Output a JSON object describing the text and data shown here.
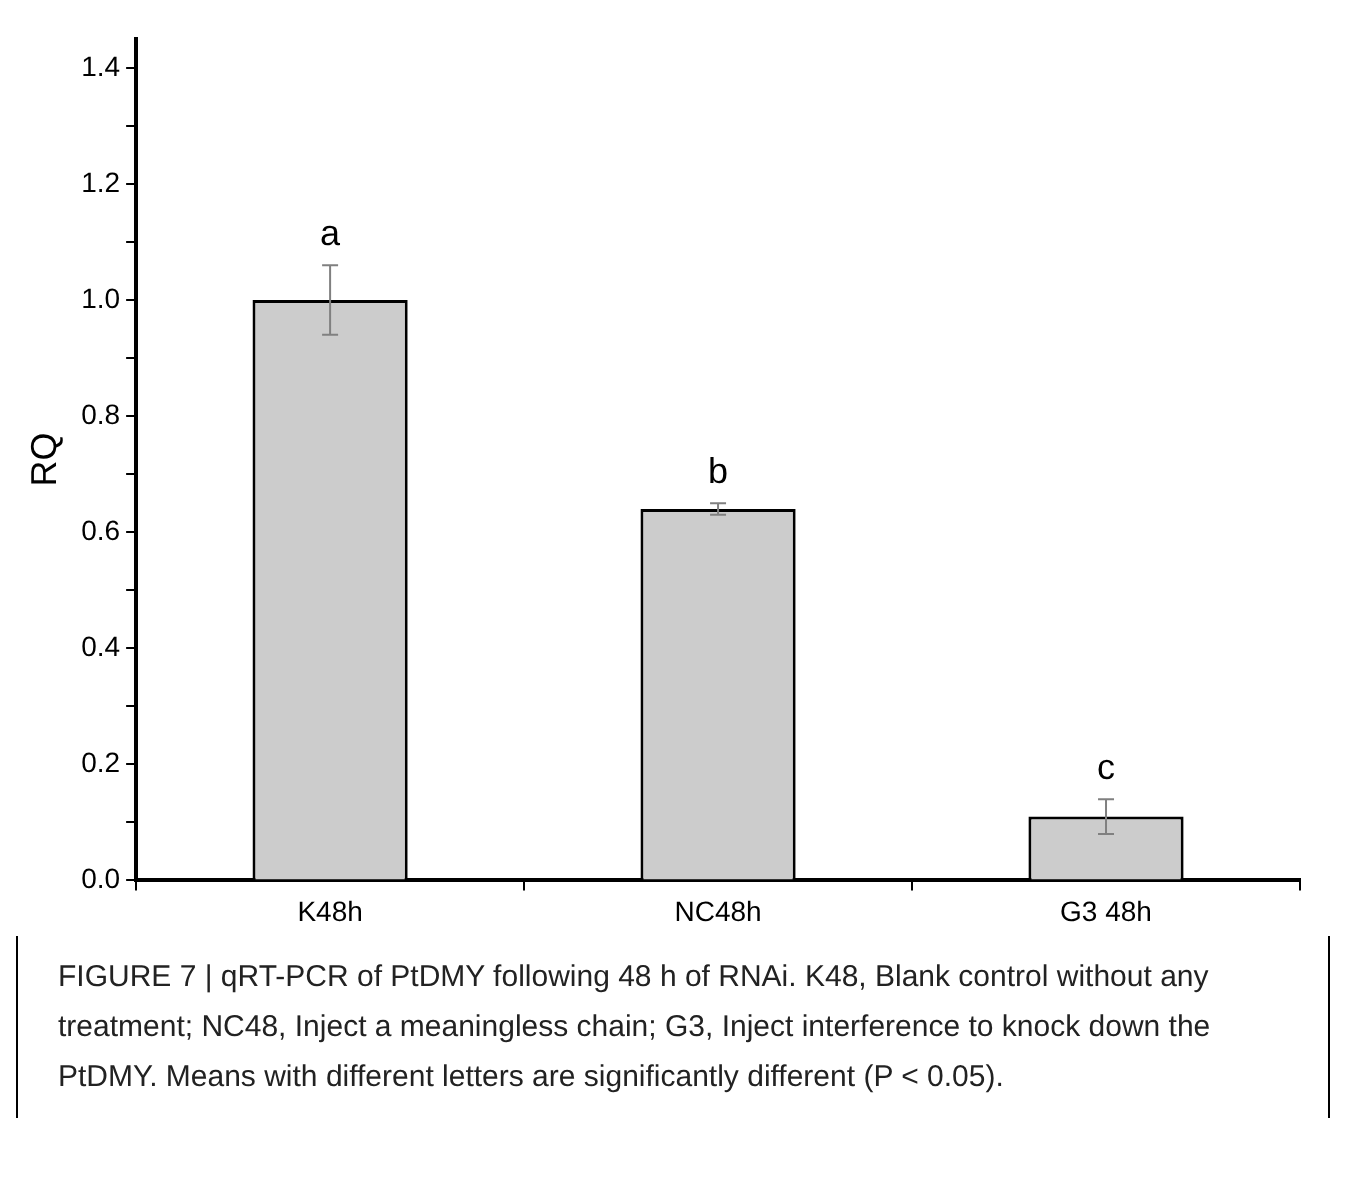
{
  "chart_data": {
    "type": "bar",
    "ylabel": "RQ",
    "categories": [
      "K48h",
      "NC48h",
      "G3 48h"
    ],
    "values": [
      1.0,
      0.64,
      0.11
    ],
    "errors": [
      0.06,
      0.01,
      0.03
    ],
    "color": "#cccccc",
    "ylim": [
      0,
      1.45
    ],
    "yticks": [
      {
        "value": 0,
        "label": "0.0"
      },
      {
        "value": 0.1,
        "label": null
      },
      {
        "value": 0.2,
        "label": "0.2"
      },
      {
        "value": 0.3,
        "label": null
      },
      {
        "value": 0.4,
        "label": "0.4"
      },
      {
        "value": 0.5,
        "label": null
      },
      {
        "value": 0.6,
        "label": "0.6"
      },
      {
        "value": 0.7,
        "label": null
      },
      {
        "value": 0.8,
        "label": "0.8"
      },
      {
        "value": 0.9,
        "label": null
      },
      {
        "value": 1.0,
        "label": "1.0"
      },
      {
        "value": 1.1,
        "label": null
      },
      {
        "value": 1.2,
        "label": "1.2"
      },
      {
        "value": 1.3,
        "label": null
      },
      {
        "value": 1.4,
        "label": "1.4"
      }
    ],
    "grid": false,
    "legend": false,
    "annotations": [
      {
        "text": "a",
        "x": "K48h",
        "y": 1.06
      },
      {
        "text": "b",
        "x": "NC48h",
        "y": 0.65
      },
      {
        "text": "c",
        "x": "G3 48h",
        "y": 0.14
      },
      "FIGURE 7 | qRT-PCR of PtDMY following 48 h of RNAi. K48, Blank control without any treatment; NC48, Inject a meaningless chain; G3, Inject interference to knock down the PtDMY. Means with different letters are significantly different (P < 0.05)."
    ]
  }
}
